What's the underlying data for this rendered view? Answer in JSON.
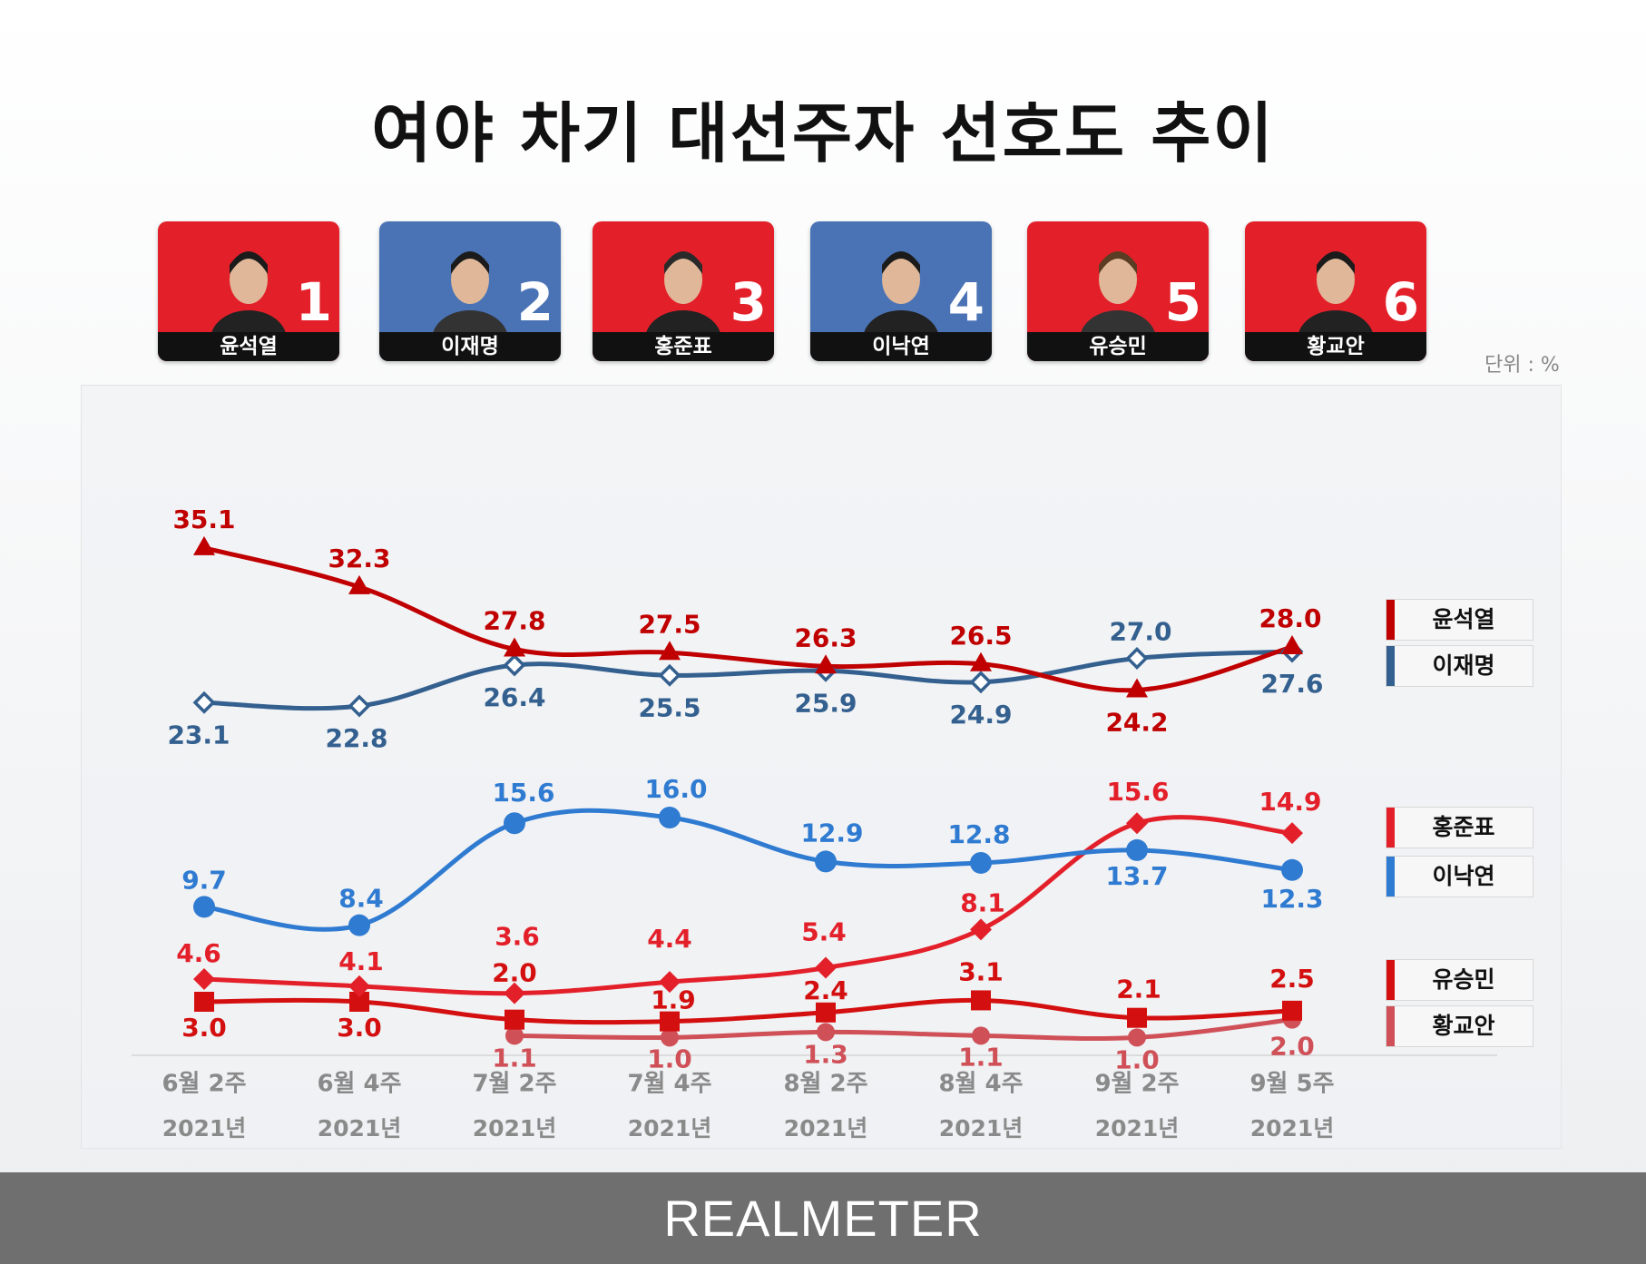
{
  "title": "여야 차기 대선주자 선호도 추이",
  "unit_label": "단위 : %",
  "brand": "REALMETER",
  "candidates": [
    {
      "rank": "1",
      "name": "윤석열",
      "bg": "#e3202a"
    },
    {
      "rank": "2",
      "name": "이재명",
      "bg": "#4a73b5"
    },
    {
      "rank": "3",
      "name": "홍준표",
      "bg": "#e3202a"
    },
    {
      "rank": "4",
      "name": "이낙연",
      "bg": "#4a73b5"
    },
    {
      "rank": "5",
      "name": "유승민",
      "bg": "#e3202a"
    },
    {
      "rank": "6",
      "name": "황교안",
      "bg": "#e3202a"
    }
  ],
  "chart_data": {
    "type": "line",
    "categories": [
      "6월 2주",
      "6월 4주",
      "7월 2주",
      "7월 4주",
      "8월 2주",
      "8월 4주",
      "9월 2주",
      "9월 5주"
    ],
    "category_years": [
      "2021년",
      "2021년",
      "2021년",
      "2021년",
      "2021년",
      "2021년",
      "2021년",
      "2021년"
    ],
    "series": [
      {
        "name": "윤석열",
        "values": [
          35.1,
          32.3,
          27.8,
          27.5,
          26.3,
          26.5,
          24.2,
          28.0
        ],
        "color": "#c00000",
        "marker": "triangle"
      },
      {
        "name": "이재명",
        "values": [
          23.1,
          22.8,
          26.4,
          25.5,
          25.9,
          24.9,
          27.0,
          27.6
        ],
        "color": "#34608f",
        "marker": "open-diamond"
      },
      {
        "name": "홍준표",
        "values": [
          4.6,
          4.1,
          3.6,
          4.4,
          5.4,
          8.1,
          15.6,
          14.9
        ],
        "color": "#e3202a",
        "marker": "diamond"
      },
      {
        "name": "이낙연",
        "values": [
          9.7,
          8.4,
          15.6,
          16.0,
          12.9,
          12.8,
          13.7,
          12.3
        ],
        "color": "#2f7bd1",
        "marker": "circle"
      },
      {
        "name": "유승민",
        "values": [
          3.0,
          3.0,
          2.0,
          1.9,
          2.4,
          3.1,
          2.1,
          2.5
        ],
        "color": "#d40f0f",
        "marker": "square"
      },
      {
        "name": "황교안",
        "values": [
          null,
          null,
          1.1,
          1.0,
          1.3,
          1.1,
          1.0,
          2.0
        ],
        "color": "#d05058",
        "marker": "circle"
      }
    ],
    "legend": [
      "윤석열",
      "이재명",
      "홍준표",
      "이낙연",
      "유승민",
      "황교안"
    ],
    "legend_position": "right",
    "grid": false
  }
}
